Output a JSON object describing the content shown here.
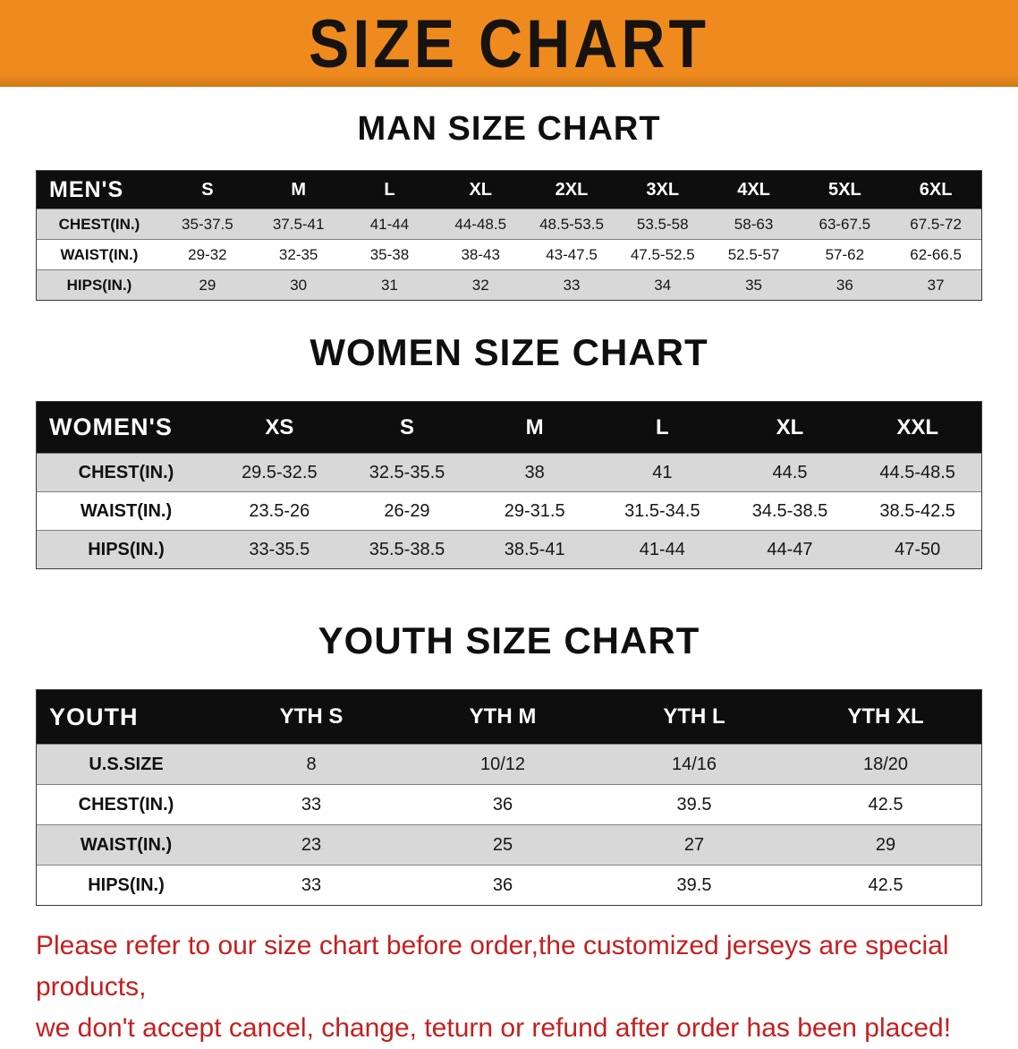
{
  "banner": {
    "title": "SIZE CHART"
  },
  "colors": {
    "banner_bg": "#EF8B1E",
    "table_header_bg": "#0E0E0E",
    "row_shade": "#D8D8D8",
    "disclaimer_red": "#C51F1F"
  },
  "sections": [
    {
      "heading": "MAN SIZE CHART"
    },
    {
      "heading": "WOMEN SIZE CHART"
    },
    {
      "heading": "YOUTH SIZE CHART"
    }
  ],
  "chart_data": [
    {
      "type": "table",
      "title": "MAN SIZE CHART",
      "corner_label": "MEN'S",
      "columns": [
        "S",
        "M",
        "L",
        "XL",
        "2XL",
        "3XL",
        "4XL",
        "5XL",
        "6XL"
      ],
      "rows": [
        {
          "label": "CHEST(IN.)",
          "values": [
            "35-37.5",
            "37.5-41",
            "41-44",
            "44-48.5",
            "48.5-53.5",
            "53.5-58",
            "58-63",
            "63-67.5",
            "67.5-72"
          ]
        },
        {
          "label": "WAIST(IN.)",
          "values": [
            "29-32",
            "32-35",
            "35-38",
            "38-43",
            "43-47.5",
            "47.5-52.5",
            "52.5-57",
            "57-62",
            "62-66.5"
          ]
        },
        {
          "label": "HIPS(IN.)",
          "values": [
            "29",
            "30",
            "31",
            "32",
            "33",
            "34",
            "35",
            "36",
            "37"
          ]
        }
      ]
    },
    {
      "type": "table",
      "title": "WOMEN SIZE CHART",
      "corner_label": "WOMEN'S",
      "columns": [
        "XS",
        "S",
        "M",
        "L",
        "XL",
        "XXL"
      ],
      "rows": [
        {
          "label": "CHEST(IN.)",
          "values": [
            "29.5-32.5",
            "32.5-35.5",
            "38",
            "41",
            "44.5",
            "44.5-48.5"
          ]
        },
        {
          "label": "WAIST(IN.)",
          "values": [
            "23.5-26",
            "26-29",
            "29-31.5",
            "31.5-34.5",
            "34.5-38.5",
            "38.5-42.5"
          ]
        },
        {
          "label": "HIPS(IN.)",
          "values": [
            "33-35.5",
            "35.5-38.5",
            "38.5-41",
            "41-44",
            "44-47",
            "47-50"
          ]
        }
      ]
    },
    {
      "type": "table",
      "title": "YOUTH SIZE CHART",
      "corner_label": "YOUTH",
      "columns": [
        "YTH S",
        "YTH M",
        "YTH L",
        "YTH XL"
      ],
      "rows": [
        {
          "label": "U.S.SIZE",
          "values": [
            "8",
            "10/12",
            "14/16",
            "18/20"
          ]
        },
        {
          "label": "CHEST(IN.)",
          "values": [
            "33",
            "36",
            "39.5",
            "42.5"
          ]
        },
        {
          "label": "WAIST(IN.)",
          "values": [
            "23",
            "25",
            "27",
            "29"
          ]
        },
        {
          "label": "HIPS(IN.)",
          "values": [
            "33",
            "36",
            "39.5",
            "42.5"
          ]
        }
      ]
    }
  ],
  "disclaimer": {
    "lines": [
      "Please refer to our size chart before order,the customized jerseys are special products,",
      "we don't accept cancel, change, teturn or refund after order has been placed!"
    ]
  }
}
